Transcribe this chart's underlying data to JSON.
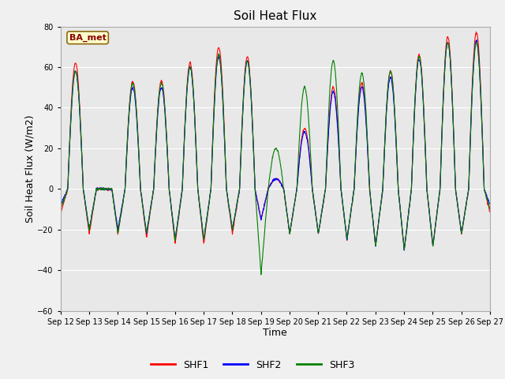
{
  "title": "Soil Heat Flux",
  "xlabel": "Time",
  "ylabel": "Soil Heat Flux (W/m2)",
  "ylim": [
    -60,
    80
  ],
  "yticks": [
    -60,
    -40,
    -20,
    0,
    20,
    40,
    60,
    80
  ],
  "legend_label": "BA_met",
  "series_labels": [
    "SHF1",
    "SHF2",
    "SHF3"
  ],
  "series_colors": [
    "red",
    "blue",
    "green"
  ],
  "fig_bg_color": "#f0f0f0",
  "plot_bg_color": "#e8e8e8",
  "title_fontsize": 11,
  "axis_label_fontsize": 9,
  "tick_fontsize": 7,
  "num_days": 15,
  "start_day": 12,
  "end_day": 27,
  "x_tick_labels": [
    "Sep 12",
    "Sep 13",
    "Sep 14",
    "Sep 15",
    "Sep 16",
    "Sep 17",
    "Sep 18",
    "Sep 19",
    "Sep 20",
    "Sep 21",
    "Sep 22",
    "Sep 23",
    "Sep 24",
    "Sep 25",
    "Sep 26",
    "Sep 27"
  ],
  "day_peaks_1": [
    62,
    0,
    53,
    53,
    62,
    70,
    65,
    5,
    30,
    50,
    52,
    58,
    66,
    75,
    77
  ],
  "day_peaks_2": [
    58,
    0,
    50,
    50,
    60,
    65,
    63,
    5,
    28,
    48,
    50,
    55,
    64,
    72,
    73
  ],
  "day_peaks_3": [
    58,
    0,
    52,
    52,
    60,
    66,
    63,
    20,
    50,
    63,
    57,
    58,
    65,
    72,
    72
  ],
  "night_troughs_1": [
    -12,
    -22,
    -22,
    -24,
    -27,
    -27,
    -22,
    -15,
    -22,
    -22,
    -25,
    -28,
    -30,
    -28,
    -22
  ],
  "night_troughs_2": [
    -8,
    -20,
    -20,
    -22,
    -25,
    -25,
    -20,
    -15,
    -22,
    -22,
    -25,
    -28,
    -30,
    -28,
    -22
  ],
  "night_troughs_3": [
    -10,
    -20,
    -22,
    -22,
    -25,
    -25,
    -20,
    -42,
    -22,
    -22,
    -25,
    -28,
    -30,
    -28,
    -22
  ]
}
